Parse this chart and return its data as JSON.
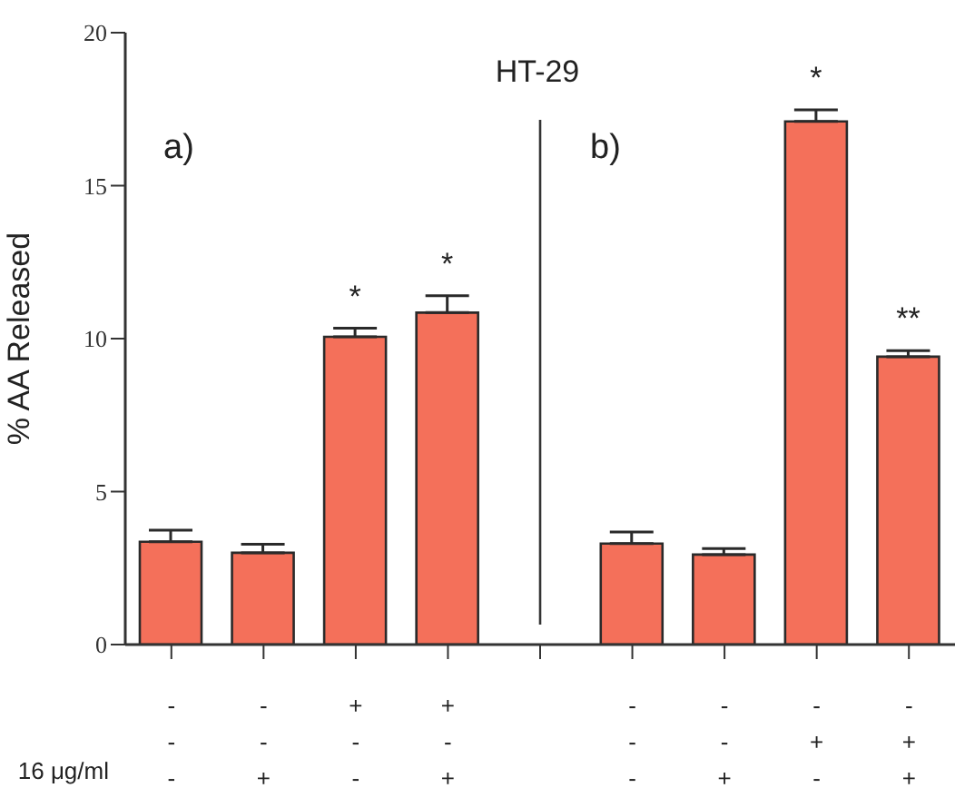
{
  "chart_data": {
    "type": "bar",
    "title": "HT-29",
    "ylabel": "% AA Released",
    "categories": [
      "-\n-\n-",
      "-\n-\n+",
      "+\n-\n-",
      "+\n-\n+",
      null,
      "-\n-\n-",
      "-\n-\n+",
      "-\n+\n-",
      "-\n+\n+"
    ],
    "values": [
      3.36,
      3.0,
      10.06,
      10.85,
      null,
      3.3,
      2.94,
      17.1,
      9.41
    ],
    "errors": [
      [
        3.36,
        3.74
      ],
      [
        3.0,
        3.28
      ],
      [
        10.06,
        10.34
      ],
      [
        10.85,
        11.4
      ],
      null,
      [
        3.3,
        3.68
      ],
      [
        2.94,
        3.14
      ],
      [
        17.1,
        17.48
      ],
      [
        9.41,
        9.61
      ]
    ],
    "value_labels": [
      null,
      null,
      "*",
      "*",
      null,
      null,
      null,
      "*",
      "**"
    ],
    "color": "#f4705a",
    "ylim": [
      0,
      20
    ],
    "yticks": [
      0,
      5,
      10,
      15,
      20
    ],
    "annotations": [
      "a)",
      "b)",
      "16 μg/ml"
    ]
  }
}
